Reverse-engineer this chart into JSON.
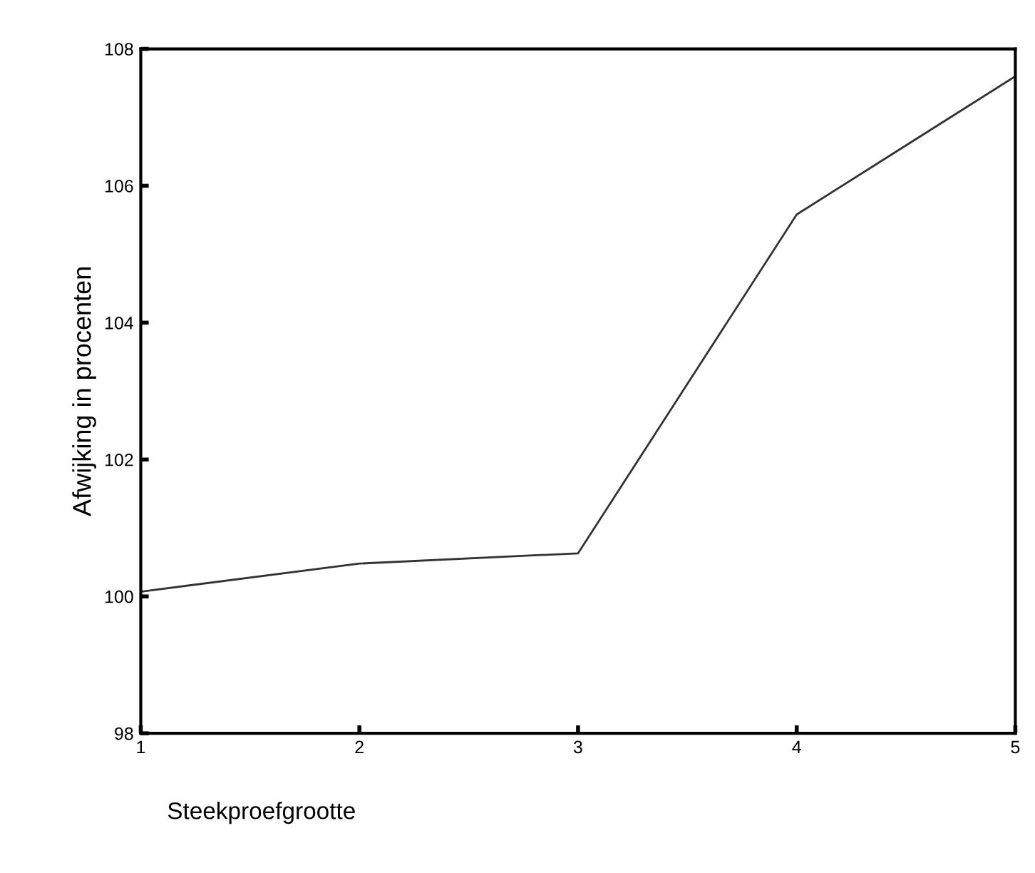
{
  "chart_data": {
    "type": "line",
    "xlabel": "Steekproefgrootte",
    "ylabel": "Afwijking in procenten",
    "x": [
      1,
      2,
      3,
      4,
      5
    ],
    "series": [
      {
        "color": "#333333",
        "values": [
          100.07,
          100.48,
          100.63,
          105.58,
          107.6
        ]
      }
    ],
    "xlim": [
      1,
      5
    ],
    "xticks": [
      1,
      2,
      3,
      4,
      5
    ],
    "ylim": [
      98,
      108
    ],
    "yticks": [
      98,
      100,
      102,
      104,
      106,
      108
    ],
    "grid": false,
    "legend": false,
    "marker": "none",
    "line_style": "solid"
  }
}
